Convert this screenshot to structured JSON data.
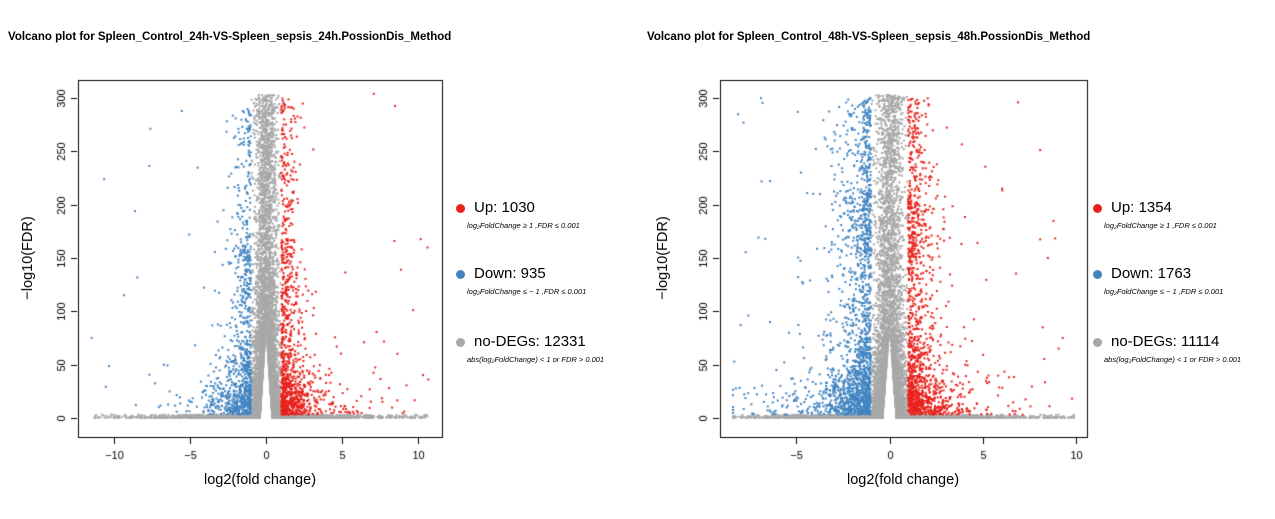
{
  "colors": {
    "up": "#e8221c",
    "down": "#4184c1",
    "none": "#a8a8a8",
    "axis": "#000000",
    "text": "#000000",
    "background": "#ffffff"
  },
  "panels": [
    {
      "title": "Volcano plot for Spleen_Control_24h-VS-Spleen_sepsis_24h.PossionDis_Method",
      "legend": {
        "entries": [
          {
            "key": "up",
            "label": "Up: 1030",
            "sub": "log₂FoldChange ≥ 1 ,FDR ≤ 0.001"
          },
          {
            "key": "down",
            "label": "Down: 935",
            "sub": "log₂FoldChange ≤ − 1 ,FDR ≤ 0.001"
          },
          {
            "key": "none",
            "label": "no-DEGs: 12331",
            "sub": "abs(log₂FoldChange) < 1  or FDR > 0.001"
          }
        ]
      }
    },
    {
      "title": "Volcano plot for Spleen_Control_48h-VS-Spleen_sepsis_48h.PossionDis_Method",
      "legend": {
        "entries": [
          {
            "key": "up",
            "label": "Up: 1354",
            "sub": "log₂FoldChange ≥ 1 ,FDR ≤ 0.001"
          },
          {
            "key": "down",
            "label": "Down: 1763",
            "sub": "log₂FoldChange ≤ − 1 ,FDR ≤ 0.001"
          },
          {
            "key": "none",
            "label": "no-DEGs: 11114",
            "sub": "abs(log₂FoldChange) < 1  or FDR > 0.001"
          }
        ]
      }
    }
  ],
  "chart_data": [
    {
      "type": "scatter",
      "title": "Volcano plot for Spleen_Control_24h-VS-Spleen_sepsis_24h.PossionDis_Method",
      "xlabel": "log2(fold change)",
      "ylabel": "−log10(FDR)",
      "xlim": [
        -12.4,
        11.6
      ],
      "ylim": [
        -18,
        317
      ],
      "xticks": [
        -10,
        -5,
        0,
        5,
        10
      ],
      "yticks": [
        0,
        50,
        100,
        150,
        200,
        250,
        300
      ],
      "grid": false,
      "legend_position": "right",
      "thresholds": {
        "abs_log2fc": 1,
        "fdr": 0.001
      },
      "series": [
        {
          "name": "Up",
          "count": 1030,
          "color_key": "up",
          "criteria": "log2FoldChange >= 1, FDR <= 0.001"
        },
        {
          "name": "Down",
          "count": 935,
          "color_key": "down",
          "criteria": "log2FoldChange <= -1, FDR <= 0.001"
        },
        {
          "name": "no-DEGs",
          "count": 12331,
          "color_key": "none",
          "criteria": "abs(log2FoldChange) < 1 or FDR > 0.001"
        }
      ],
      "gen": {
        "seed": 20241,
        "up": {
          "dir": 1,
          "count": 1030,
          "dmax": 9.9,
          "wBase": 0.42,
          "wBoost": 0.95,
          "yExp": 26,
          "pLow": 0.58,
          "pMid": 0.26,
          "midMax": 165,
          "hiMin": 150,
          "hiMax": 300,
          "ymax": 305
        },
        "down": {
          "dir": -1,
          "count": 935,
          "dmax": 10.4,
          "wBase": 0.45,
          "wBoost": 1.0,
          "yExp": 26,
          "pLow": 0.58,
          "pMid": 0.26,
          "midMax": 160,
          "hiMin": 140,
          "hiMax": 290,
          "ymax": 292
        },
        "none": {
          "count": 12331,
          "bandFrac": 0.42,
          "bandXmin": -11.3,
          "bandXmax": 10.8,
          "colSd": 0.4,
          "colExp": 34,
          "notchH": 85,
          "notchW": 0.42,
          "ymax": 303
        },
        "outliers": {
          "up": [
            [
              7.1,
              304
            ],
            [
              8.9,
              139
            ],
            [
              9.7,
              101
            ],
            [
              10.7,
              36
            ]
          ],
          "down": [
            [
              -11.5,
              75
            ]
          ],
          "none": [
            [
              -8.9,
              1.5
            ],
            [
              10.2,
              1.2
            ]
          ]
        }
      }
    },
    {
      "type": "scatter",
      "title": "Volcano plot for Spleen_Control_48h-VS-Spleen_sepsis_48h.PossionDis_Method",
      "xlabel": "log2(fold change)",
      "ylabel": "−log10(FDR)",
      "xlim": [
        -9.1,
        10.6
      ],
      "ylim": [
        -18,
        317
      ],
      "xticks": [
        -5,
        0,
        5,
        10
      ],
      "yticks": [
        0,
        50,
        100,
        150,
        200,
        250,
        300
      ],
      "grid": false,
      "legend_position": "right",
      "thresholds": {
        "abs_log2fc": 1,
        "fdr": 0.001
      },
      "series": [
        {
          "name": "Up",
          "count": 1354,
          "color_key": "up",
          "criteria": "log2FoldChange >= 1, FDR <= 0.001"
        },
        {
          "name": "Down",
          "count": 1763,
          "color_key": "down",
          "criteria": "log2FoldChange <= -1, FDR <= 0.001"
        },
        {
          "name": "no-DEGs",
          "count": 11114,
          "color_key": "none",
          "criteria": "abs(log2FoldChange) < 1 or FDR > 0.001"
        }
      ],
      "gen": {
        "seed": 48487,
        "up": {
          "dir": 1,
          "count": 1354,
          "dmax": 8.9,
          "wBase": 0.5,
          "wBoost": 0.95,
          "yExp": 28,
          "pLow": 0.52,
          "pMid": 0.28,
          "midMax": 200,
          "hiMin": 150,
          "hiMax": 300,
          "ymax": 305
        },
        "down": {
          "dir": -1,
          "count": 1763,
          "dmax": 7.4,
          "wBase": 0.62,
          "wBoost": 1.05,
          "yExp": 28,
          "pLow": 0.5,
          "pMid": 0.3,
          "midMax": 210,
          "hiMin": 150,
          "hiMax": 300,
          "ymax": 302
        },
        "none": {
          "count": 11114,
          "bandFrac": 0.4,
          "bandXmin": -8.4,
          "bandXmax": 9.9,
          "colSd": 0.4,
          "colExp": 30,
          "notchH": 85,
          "notchW": 0.38,
          "ymax": 303
        },
        "outliers": {
          "up": [
            [
              6.9,
              296
            ],
            [
              9.8,
              18
            ],
            [
              9.3,
              75
            ],
            [
              8.5,
              150
            ]
          ],
          "down": [
            [
              -6.9,
              300
            ],
            [
              -7.8,
              22
            ]
          ],
          "none": [
            [
              9.9,
              1.0
            ],
            [
              -8.3,
              1.3
            ]
          ]
        }
      }
    }
  ]
}
